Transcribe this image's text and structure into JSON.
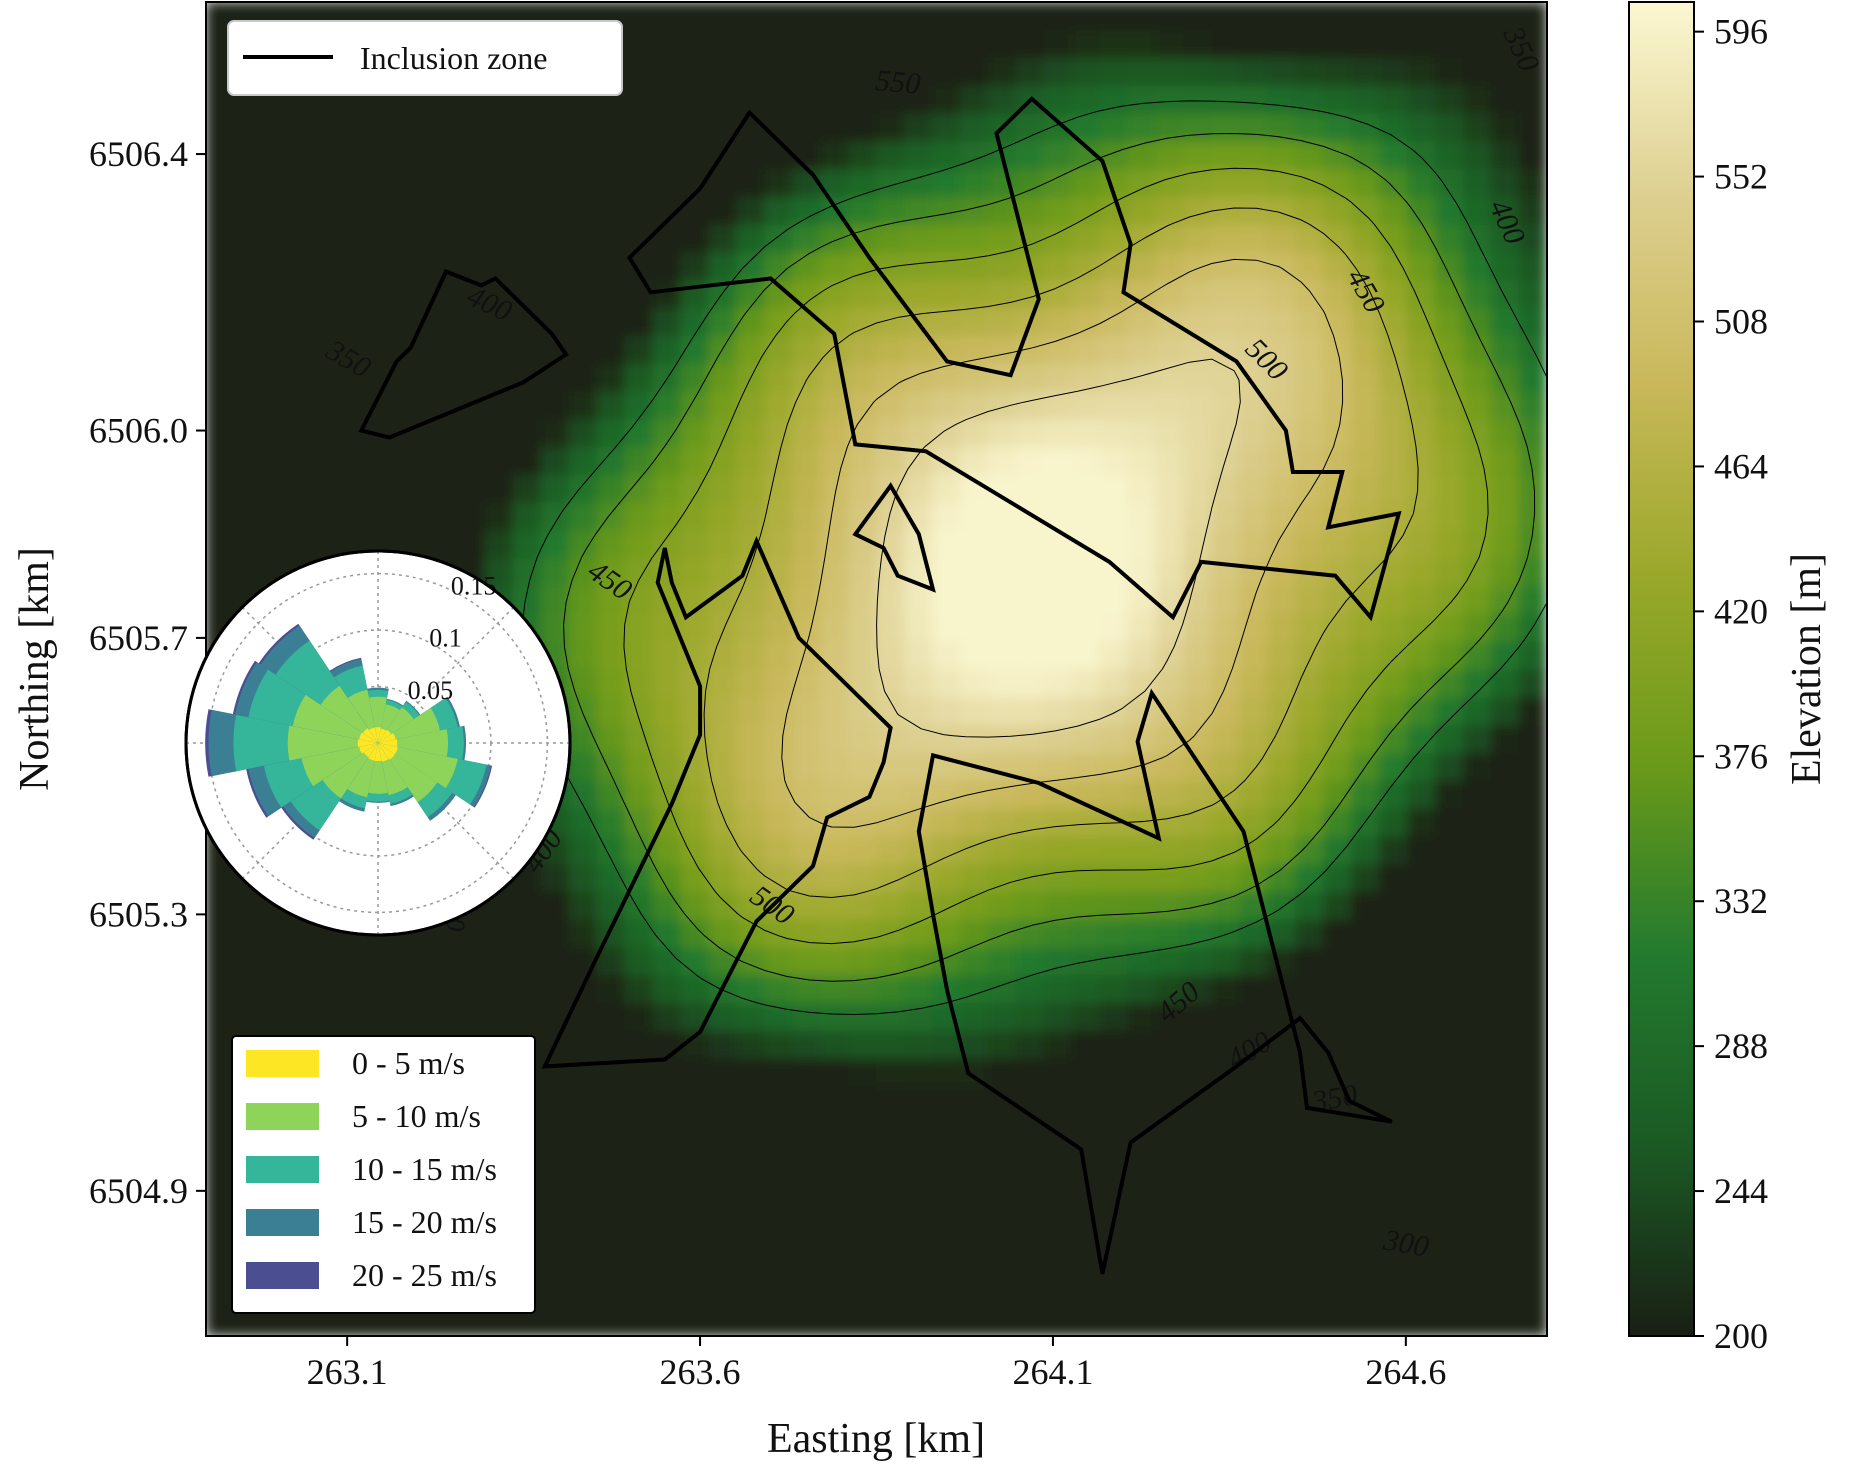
{
  "chart_data": {
    "type": "heatmap",
    "xlabel": "Easting [km]",
    "ylabel": "Northing [km]",
    "x_ticks": [
      263.1,
      263.6,
      264.1,
      264.6
    ],
    "x_tick_labels": [
      "263.1",
      "263.6",
      "264.1",
      "264.6"
    ],
    "y_ticks": [
      6504.9,
      6505.3,
      6505.7,
      6506.0,
      6506.4
    ],
    "y_tick_labels": [
      "6504.9",
      "6505.3",
      "6505.7",
      "6506.0",
      "6506.4"
    ],
    "xlim": [
      262.9,
      264.8
    ],
    "ylim": [
      6504.69,
      6506.62
    ],
    "colorbar": {
      "label": "Elevation [m]",
      "range": [
        200,
        605
      ],
      "ticks": [
        200,
        244,
        288,
        332,
        376,
        420,
        464,
        508,
        552,
        596
      ],
      "colormap_stops": [
        "#1a1f14",
        "#1b5a24",
        "#237a2e",
        "#6b9a1a",
        "#9aa82a",
        "#c9b85a",
        "#ddd091",
        "#fbf7d2"
      ]
    },
    "elevation_peak": {
      "x": 264.1,
      "y": 6505.82,
      "value": 600
    },
    "contour_levels": [
      300,
      350,
      400,
      450,
      500,
      550
    ],
    "contour_labels": [
      {
        "text": "550",
        "x": 263.88,
        "y": 6506.5,
        "angle": 5
      },
      {
        "text": "500",
        "x": 264.4,
        "y": 6506.1,
        "angle": 45
      },
      {
        "text": "450",
        "x": 264.54,
        "y": 6506.2,
        "angle": 60
      },
      {
        "text": "400",
        "x": 264.74,
        "y": 6506.3,
        "angle": 65
      },
      {
        "text": "350",
        "x": 264.76,
        "y": 6506.55,
        "angle": 65
      },
      {
        "text": "400",
        "x": 263.3,
        "y": 6506.18,
        "angle": 25
      },
      {
        "text": "350",
        "x": 263.1,
        "y": 6506.1,
        "angle": 30
      },
      {
        "text": "450",
        "x": 263.47,
        "y": 6505.78,
        "angle": 35
      },
      {
        "text": "400",
        "x": 263.38,
        "y": 6505.39,
        "angle": -55
      },
      {
        "text": "500",
        "x": 263.7,
        "y": 6505.31,
        "angle": 35
      },
      {
        "text": "450",
        "x": 264.28,
        "y": 6505.17,
        "angle": -40
      },
      {
        "text": "400",
        "x": 264.38,
        "y": 6505.1,
        "angle": -30
      },
      {
        "text": "350",
        "x": 264.5,
        "y": 6505.03,
        "angle": -10
      },
      {
        "text": "300",
        "x": 264.6,
        "y": 6504.82,
        "angle": 10
      }
    ],
    "inclusion_zones": [
      [
        [
          263.12,
          6506.0
        ],
        [
          263.17,
          6506.1
        ],
        [
          263.19,
          6506.12
        ],
        [
          263.24,
          6506.23
        ],
        [
          263.29,
          6506.21
        ],
        [
          263.31,
          6506.22
        ],
        [
          263.39,
          6506.14
        ],
        [
          263.41,
          6506.11
        ],
        [
          263.35,
          6506.07
        ],
        [
          263.16,
          6505.99
        ],
        [
          263.12,
          6506.0
        ]
      ],
      [
        [
          263.67,
          6506.46
        ],
        [
          263.6,
          6506.35
        ],
        [
          263.5,
          6506.25
        ],
        [
          263.53,
          6506.2
        ],
        [
          263.7,
          6506.22
        ],
        [
          263.79,
          6506.14
        ],
        [
          263.82,
          6505.98
        ],
        [
          263.92,
          6505.97
        ],
        [
          264.18,
          6505.81
        ],
        [
          264.27,
          6505.73
        ],
        [
          264.31,
          6505.81
        ],
        [
          264.5,
          6505.79
        ],
        [
          264.55,
          6505.73
        ],
        [
          264.59,
          6505.88
        ],
        [
          264.49,
          6505.86
        ],
        [
          264.51,
          6505.94
        ],
        [
          264.44,
          6505.94
        ],
        [
          264.43,
          6506.0
        ],
        [
          264.36,
          6506.1
        ],
        [
          264.2,
          6506.2
        ],
        [
          264.21,
          6506.27
        ],
        [
          264.17,
          6506.39
        ],
        [
          264.07,
          6506.48
        ],
        [
          264.02,
          6506.43
        ],
        [
          264.04,
          6506.35
        ],
        [
          264.08,
          6506.19
        ],
        [
          264.04,
          6506.08
        ],
        [
          263.95,
          6506.1
        ],
        [
          263.84,
          6506.25
        ],
        [
          263.76,
          6506.37
        ],
        [
          263.67,
          6506.46
        ]
      ],
      [
        [
          263.87,
          6505.92
        ],
        [
          263.82,
          6505.85
        ],
        [
          263.86,
          6505.83
        ],
        [
          263.88,
          6505.79
        ],
        [
          263.93,
          6505.77
        ],
        [
          263.91,
          6505.85
        ],
        [
          263.87,
          6505.92
        ]
      ],
      [
        [
          263.55,
          6505.83
        ],
        [
          263.56,
          6505.78
        ],
        [
          263.58,
          6505.73
        ],
        [
          263.66,
          6505.79
        ],
        [
          263.68,
          6505.84
        ],
        [
          263.74,
          6505.7
        ],
        [
          263.87,
          6505.57
        ],
        [
          263.86,
          6505.52
        ],
        [
          263.84,
          6505.47
        ],
        [
          263.78,
          6505.44
        ],
        [
          263.76,
          6505.37
        ],
        [
          263.68,
          6505.29
        ],
        [
          263.6,
          6505.13
        ],
        [
          263.55,
          6505.09
        ],
        [
          263.38,
          6505.08
        ],
        [
          263.45,
          6505.23
        ],
        [
          263.56,
          6505.46
        ],
        [
          263.6,
          6505.56
        ],
        [
          263.6,
          6505.63
        ],
        [
          263.54,
          6505.78
        ],
        [
          263.55,
          6505.83
        ]
      ],
      [
        [
          263.91,
          6505.42
        ],
        [
          263.93,
          6505.53
        ],
        [
          264.08,
          6505.49
        ],
        [
          264.25,
          6505.41
        ],
        [
          264.22,
          6505.55
        ],
        [
          264.24,
          6505.62
        ],
        [
          264.37,
          6505.42
        ],
        [
          264.41,
          6505.26
        ],
        [
          264.45,
          6505.1
        ],
        [
          264.46,
          6505.02
        ],
        [
          264.58,
          6505.0
        ],
        [
          264.52,
          6505.03
        ],
        [
          264.49,
          6505.1
        ],
        [
          264.45,
          6505.15
        ],
        [
          264.36,
          6505.08
        ],
        [
          264.21,
          6504.97
        ],
        [
          264.17,
          6504.78
        ],
        [
          264.14,
          6504.96
        ],
        [
          263.98,
          6505.07
        ],
        [
          263.95,
          6505.19
        ],
        [
          263.93,
          6505.3
        ],
        [
          263.91,
          6505.42
        ]
      ]
    ],
    "legend_line": "Inclusion zone",
    "wind_rose": {
      "radial_ticks": [
        "0.05",
        "0.1",
        "0.15"
      ],
      "angle_label": "0",
      "bins": [
        "0 - 5 m/s",
        "5 - 10 m/s",
        "10 - 15 m/s",
        "15 - 20 m/s",
        "20 - 25 m/s"
      ],
      "bin_colors": [
        "#fde725",
        "#8fd45a",
        "#35b59a",
        "#3b7f95",
        "#4b4f92"
      ],
      "directions_deg": [
        0,
        22.5,
        45,
        67.5,
        90,
        112.5,
        135,
        157.5,
        180,
        202.5,
        225,
        247.5,
        270,
        292.5,
        315,
        337.5
      ],
      "frequencies": {
        "0 - 5 m/s": [
          0.014,
          0.013,
          0.014,
          0.016,
          0.017,
          0.018,
          0.018,
          0.017,
          0.016,
          0.016,
          0.015,
          0.017,
          0.018,
          0.017,
          0.016,
          0.014
        ],
        "5 - 10 m/s": [
          0.027,
          0.022,
          0.024,
          0.04,
          0.045,
          0.054,
          0.045,
          0.03,
          0.029,
          0.033,
          0.044,
          0.052,
          0.062,
          0.06,
          0.045,
          0.034
        ],
        "10 - 15 m/s": [
          0.006,
          0.004,
          0.006,
          0.016,
          0.014,
          0.026,
          0.016,
          0.008,
          0.007,
          0.01,
          0.034,
          0.034,
          0.048,
          0.04,
          0.048,
          0.022
        ],
        "15 - 20 m/s": [
          0.002,
          0.001,
          0.001,
          0.002,
          0.002,
          0.004,
          0.004,
          0.002,
          0.001,
          0.003,
          0.008,
          0.014,
          0.022,
          0.012,
          0.016,
          0.006
        ],
        "20 - 25 m/s": [
          0.0,
          0.0,
          0.0,
          0.0,
          0.0,
          0.001,
          0.0,
          0.0,
          0.0,
          0.0,
          0.002,
          0.002,
          0.003,
          0.002,
          0.002,
          0.001
        ]
      },
      "rmax": 0.17
    }
  }
}
